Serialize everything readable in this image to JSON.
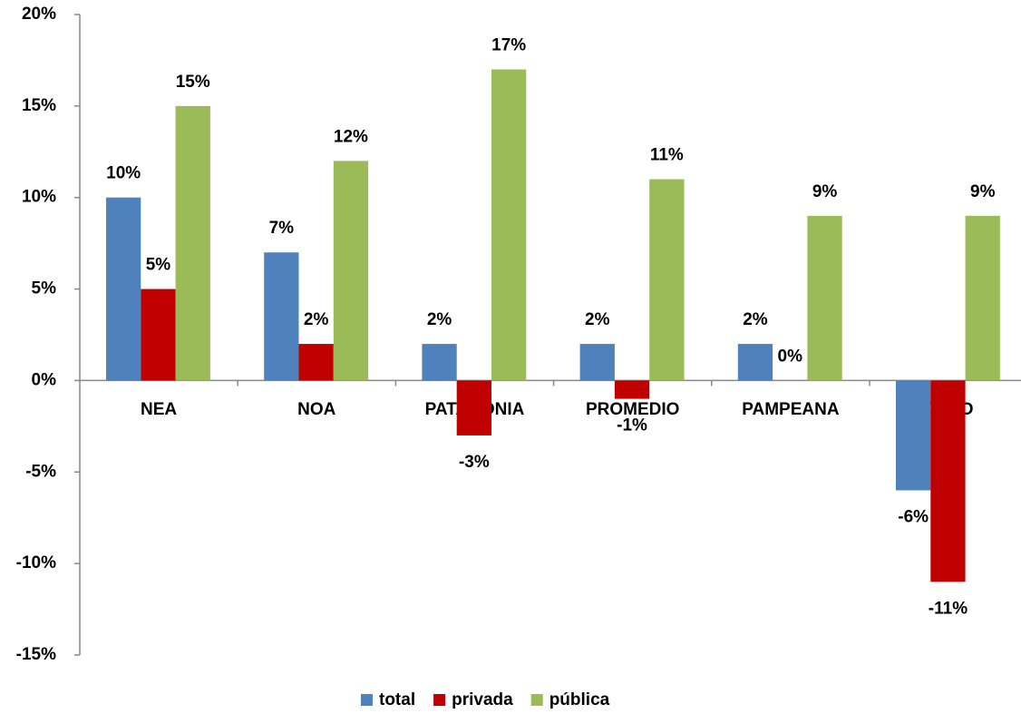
{
  "chart_data": {
    "type": "bar",
    "categories": [
      "NEA",
      "NOA",
      "PATAGONIA",
      "PROMEDIO",
      "PAMPEANA",
      "CUYO"
    ],
    "series": [
      {
        "name": "total",
        "color": "#4f81bd",
        "values": [
          10,
          7,
          2,
          2,
          2,
          -6
        ],
        "value_labels": [
          "10%",
          "7%",
          "2%",
          "2%",
          "2%",
          "-6%"
        ]
      },
      {
        "name": "privada",
        "color": "#c00000",
        "values": [
          5,
          2,
          -3,
          -1,
          0,
          -11
        ],
        "value_labels": [
          "5%",
          "2%",
          "-3%",
          "-1%",
          "0%",
          "-11%"
        ]
      },
      {
        "name": "pública",
        "color": "#9bbb59",
        "values": [
          15,
          12,
          17,
          11,
          9,
          9
        ],
        "value_labels": [
          "15%",
          "12%",
          "17%",
          "11%",
          "9%",
          "9%"
        ]
      }
    ],
    "ylim": [
      -15,
      20
    ],
    "yticks": [
      {
        "value": -15,
        "label": "-15%"
      },
      {
        "value": -10,
        "label": "-10%"
      },
      {
        "value": -5,
        "label": "-5%"
      },
      {
        "value": 0,
        "label": "0%"
      },
      {
        "value": 5,
        "label": "5%"
      },
      {
        "value": 10,
        "label": "10%"
      },
      {
        "value": 15,
        "label": "15%"
      },
      {
        "value": 20,
        "label": "20%"
      }
    ],
    "legend": "bottom"
  }
}
